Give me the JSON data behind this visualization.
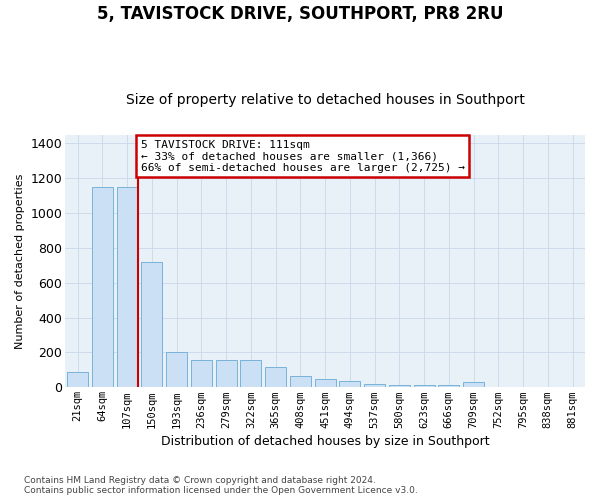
{
  "title": "5, TAVISTOCK DRIVE, SOUTHPORT, PR8 2RU",
  "subtitle": "Size of property relative to detached houses in Southport",
  "xlabel": "Distribution of detached houses by size in Southport",
  "ylabel": "Number of detached properties",
  "categories": [
    "21sqm",
    "64sqm",
    "107sqm",
    "150sqm",
    "193sqm",
    "236sqm",
    "279sqm",
    "322sqm",
    "365sqm",
    "408sqm",
    "451sqm",
    "494sqm",
    "537sqm",
    "580sqm",
    "623sqm",
    "666sqm",
    "709sqm",
    "752sqm",
    "795sqm",
    "838sqm",
    "881sqm"
  ],
  "values": [
    90,
    1150,
    1150,
    720,
    205,
    155,
    155,
    155,
    115,
    65,
    50,
    35,
    20,
    15,
    15,
    15,
    30,
    3,
    0,
    0,
    0
  ],
  "bar_color": "#cce0f5",
  "bar_edge_color": "#7ab3d9",
  "red_line_index": 2,
  "annotation_text": "5 TAVISTOCK DRIVE: 111sqm\n← 33% of detached houses are smaller (1,366)\n66% of semi-detached houses are larger (2,725) →",
  "annotation_box_facecolor": "#ffffff",
  "annotation_box_edgecolor": "#cc0000",
  "ylim": [
    0,
    1450
  ],
  "yticks": [
    0,
    200,
    400,
    600,
    800,
    1000,
    1200,
    1400
  ],
  "footer_line1": "Contains HM Land Registry data © Crown copyright and database right 2024.",
  "footer_line2": "Contains public sector information licensed under the Open Government Licence v3.0.",
  "bg_color": "#ffffff",
  "plot_bg_color": "#e8f0f8",
  "grid_color": "#c8d8e8"
}
